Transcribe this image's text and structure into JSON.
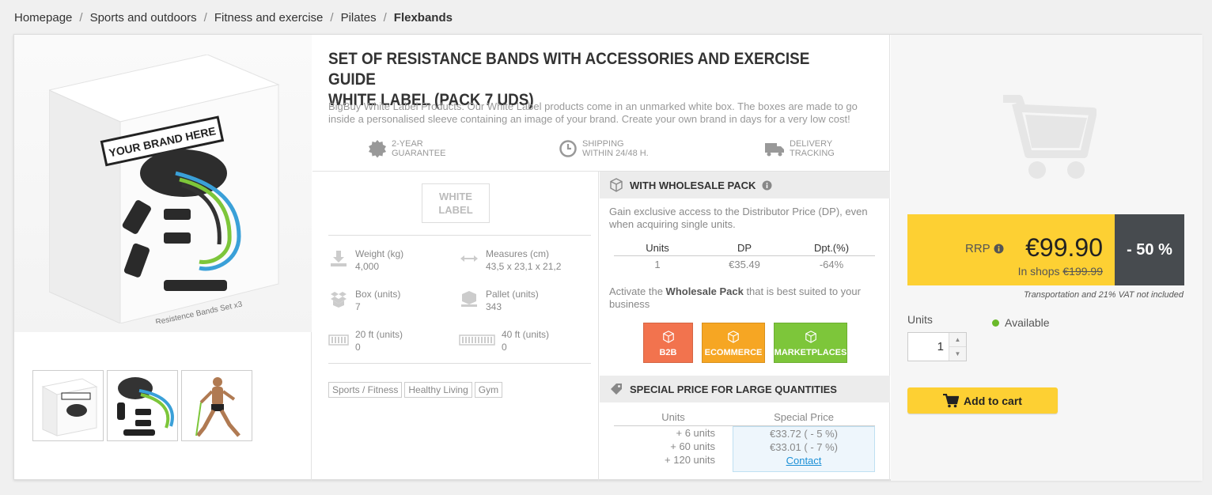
{
  "breadcrumb": {
    "items": [
      "Homepage",
      "Sports and outdoors",
      "Fitness and exercise",
      "Pilates"
    ],
    "current": "Flexbands",
    "separator": "/"
  },
  "gallery": {
    "box_label": "YOUR BRAND HERE",
    "box_caption": "Resistence Bands Set x3",
    "thumbnails": [
      "box-thumbnail",
      "bands-thumbnail",
      "athlete-thumbnail"
    ]
  },
  "product": {
    "title_line1": "SET OF RESISTANCE BANDS WITH ACCESSORIES AND EXERCISE GUIDE",
    "title_line2": "WHITE LABEL (PACK 7 UDS)",
    "description": "BigBuy White Label Products: Our White Label products come in an unmarked white box. The boxes are made to go inside a personalised sleeve containing an image of your brand. Create your own brand in days for a very low cost!"
  },
  "features": {
    "guarantee": [
      "2-YEAR",
      "GUARANTEE"
    ],
    "shipping": [
      "SHIPPING",
      "WITHIN 24/48 H."
    ],
    "tracking": [
      "DELIVERY",
      "TRACKING"
    ]
  },
  "specs": {
    "logo_line1": "WHITE",
    "logo_line2": "LABEL",
    "weight_label": "Weight (kg)",
    "weight_value": "4,000",
    "measures_label": "Measures (cm)",
    "measures_value": "43,5 x 23,1 x 21,2",
    "box_label": "Box (units)",
    "box_value": "7",
    "pallet_label": "Pallet (units)",
    "pallet_value": "343",
    "ft20_label": "20 ft (units)",
    "ft20_value": "0",
    "ft40_label": "40 ft (units)",
    "ft40_value": "0",
    "tags": [
      "Sports / Fitness",
      "Healthy Living",
      "Gym"
    ]
  },
  "wholesale": {
    "heading": "WITH WHOLESALE PACK",
    "text": "Gain exclusive access to the Distributor Price (DP), even when acquiring single units.",
    "headers": [
      "Units",
      "DP",
      "Dpt.(%)"
    ],
    "row": [
      "1",
      "€35.49",
      "-64%"
    ],
    "activate_prefix": "Activate the ",
    "activate_bold": "Wholesale Pack",
    "activate_suffix": " that is best suited to your business",
    "packs": [
      {
        "label": "B2B",
        "color": "#f2734e"
      },
      {
        "label": "ECOMMERCE",
        "color": "#f6a623"
      },
      {
        "label": "MARKETPLACES",
        "color": "#7dc63a"
      }
    ]
  },
  "special": {
    "heading": "SPECIAL PRICE FOR LARGE QUANTITIES",
    "headers": [
      "Units",
      "Special Price"
    ],
    "units": [
      "+ 6 units",
      "+ 60 units",
      "+ 120 units"
    ],
    "prices": [
      "€33.72 ( - 5 %)",
      "€33.01 ( - 7 %)"
    ],
    "contact": "Contact"
  },
  "purchase": {
    "rrp_label": "RRP",
    "price": "€99.90",
    "in_shops_label": "In shops",
    "in_shops_price": "€199.99",
    "discount": "- 50 %",
    "vat_note": "Transportation and 21% VAT not included",
    "units_label": "Units",
    "quantity": "1",
    "availability": "Available",
    "add_to_cart": "Add to cart"
  },
  "colors": {
    "accent_yellow": "#fdd033",
    "discount_dark": "#474b4f",
    "available_green": "#6ab92a",
    "link_blue": "#1a8fd6"
  }
}
